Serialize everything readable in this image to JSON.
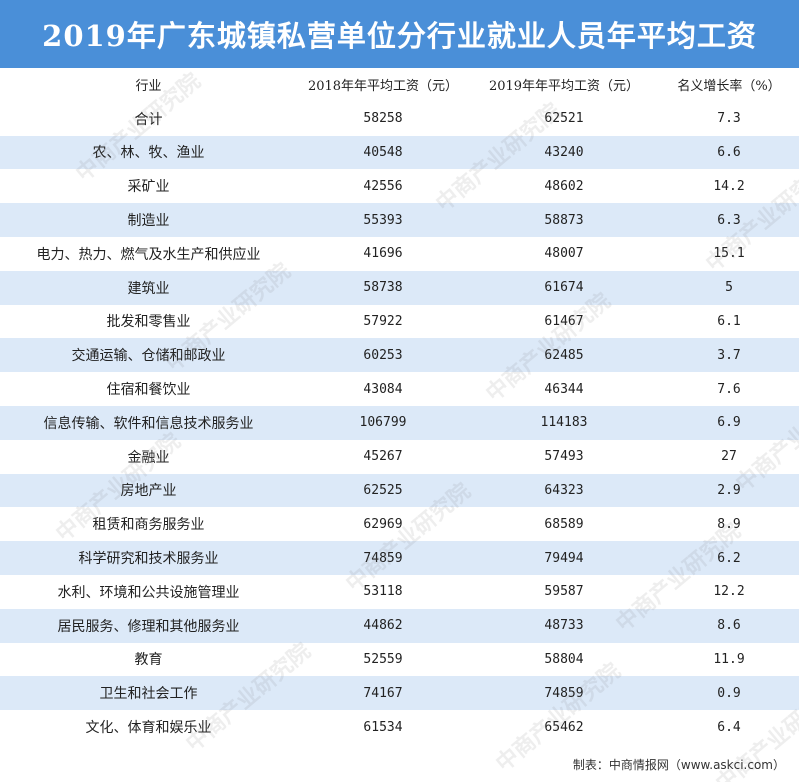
{
  "chart_data": {
    "type": "table",
    "title": "2019年广东城镇私营单位分行业就业人员年平均工资",
    "columns": [
      "行业",
      "2018年年平均工资（元）",
      "2019年年平均工资（元）",
      "名义增长率（%）"
    ],
    "rows": [
      [
        "合计",
        "58258",
        "62521",
        "7.3"
      ],
      [
        "农、林、牧、渔业",
        "40548",
        "43240",
        "6.6"
      ],
      [
        "采矿业",
        "42556",
        "48602",
        "14.2"
      ],
      [
        "制造业",
        "55393",
        "58873",
        "6.3"
      ],
      [
        "电力、热力、燃气及水生产和供应业",
        "41696",
        "48007",
        "15.1"
      ],
      [
        "建筑业",
        "58738",
        "61674",
        "5"
      ],
      [
        "批发和零售业",
        "57922",
        "61467",
        "6.1"
      ],
      [
        "交通运输、仓储和邮政业",
        "60253",
        "62485",
        "3.7"
      ],
      [
        "住宿和餐饮业",
        "43084",
        "46344",
        "7.6"
      ],
      [
        "信息传输、软件和信息技术服务业",
        "106799",
        "114183",
        "6.9"
      ],
      [
        "金融业",
        "45267",
        "57493",
        "27"
      ],
      [
        "房地产业",
        "62525",
        "64323",
        "2.9"
      ],
      [
        "租赁和商务服务业",
        "62969",
        "68589",
        "8.9"
      ],
      [
        "科学研究和技术服务业",
        "74859",
        "79494",
        "6.2"
      ],
      [
        "水利、环境和公共设施管理业",
        "53118",
        "59587",
        "12.2"
      ],
      [
        "居民服务、修理和其他服务业",
        "44862",
        "48733",
        "8.6"
      ],
      [
        "教育",
        "52559",
        "58804",
        "11.9"
      ],
      [
        "卫生和社会工作",
        "74167",
        "74859",
        "0.9"
      ],
      [
        "文化、体育和娱乐业",
        "61534",
        "65462",
        "6.4"
      ]
    ]
  },
  "footer": "制表：中商情报网（www.askci.com）",
  "watermark": "中商产业研究院",
  "colors": {
    "title_bg": "#4a8fd8",
    "title_text": "#ffffff",
    "row_alt": "#dce9f8",
    "row_plain": "#ffffff"
  }
}
